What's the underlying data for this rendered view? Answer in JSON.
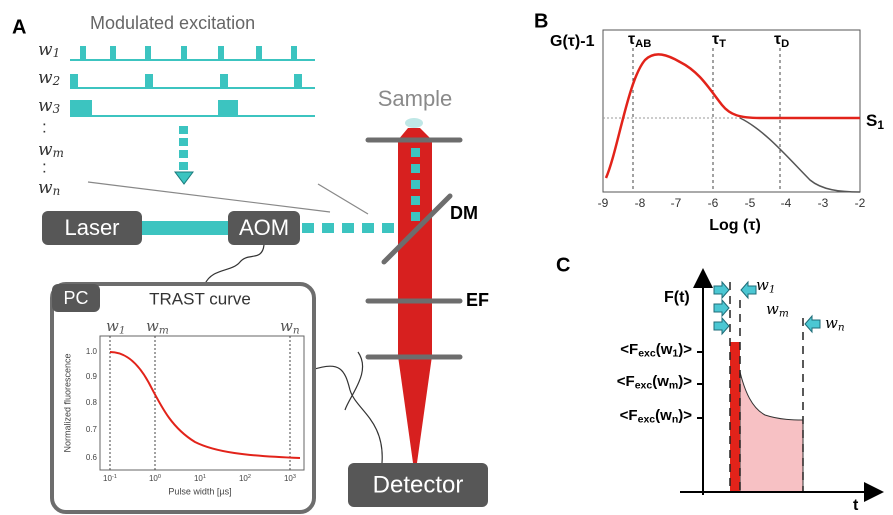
{
  "panel_a": {
    "label": "A",
    "excitation_title": "Modulated excitation",
    "pulse_labels": [
      [
        "w",
        "1"
      ],
      [
        "w",
        "2"
      ],
      [
        "w",
        "3"
      ],
      [
        "w",
        "m"
      ],
      [
        "w",
        "n"
      ]
    ],
    "dots": [
      ":",
      ":"
    ],
    "sample": "Sample",
    "laser": "Laser",
    "aom": "AOM",
    "dm": "DM",
    "ef": "EF",
    "detector": "Detector",
    "pc": "PC",
    "trast": {
      "title": "TRAST curve",
      "markers": [
        [
          "w",
          "1"
        ],
        [
          "w",
          "m"
        ],
        [
          "w",
          "n"
        ]
      ],
      "y_label": "Normalized fluorescence",
      "x_label": "Pulse width [µs]",
      "y_ticks": [
        "1.0",
        "0.9",
        "0.8",
        "0.7",
        "0.6"
      ],
      "x_ticks": [
        [
          "10",
          "-1"
        ],
        [
          "10",
          "0"
        ],
        [
          "10",
          "1"
        ],
        [
          "10",
          "2"
        ],
        [
          "10",
          "3"
        ]
      ]
    }
  },
  "panel_b": {
    "label": "B",
    "y_label": "G(τ)-1",
    "markers": [
      [
        "τ",
        "AB"
      ],
      [
        "τ",
        "T"
      ],
      [
        "τ",
        "D"
      ]
    ],
    "curve_label": [
      "S",
      "1"
    ],
    "x_ticks": [
      "-9",
      "-8",
      "-7",
      "-6",
      "-5",
      "-4",
      "-3",
      "-2"
    ],
    "x_label": "Log (τ)"
  },
  "panel_c": {
    "label": "C",
    "y_label": "F(t)",
    "x_label": "t",
    "widths": [
      [
        "w",
        "1"
      ],
      [
        "w",
        "m"
      ],
      [
        "w",
        "n"
      ]
    ],
    "levels": [
      [
        "<F",
        "exc",
        "(w",
        "1",
        ")>"
      ],
      [
        "<F",
        "exc",
        "(w",
        "m",
        ")>"
      ],
      [
        "<F",
        "exc",
        "(w",
        "n",
        ")>"
      ]
    ]
  }
}
